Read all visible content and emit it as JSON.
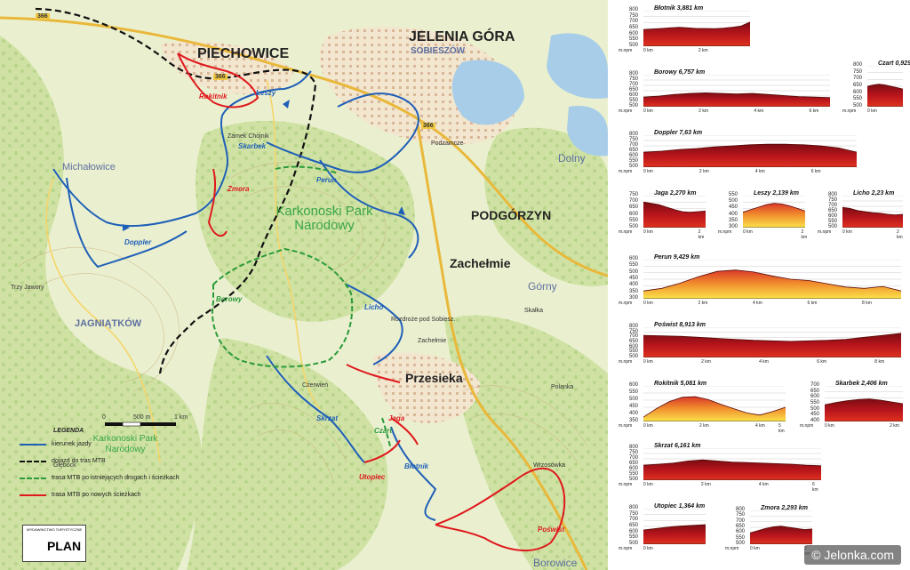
{
  "map": {
    "towns": [
      {
        "id": "piechowice",
        "name": "PIECHOWICE"
      },
      {
        "id": "jelenia",
        "name": "JELENIA GÓRA"
      },
      {
        "id": "sobieszow",
        "name": "SOBIESZÓW"
      },
      {
        "id": "podgorzyn",
        "name": "PODGÓRZYN"
      },
      {
        "id": "zachelmie",
        "name": "Zachełmie"
      },
      {
        "id": "przesieka",
        "name": "Przesieka"
      },
      {
        "id": "michalowice",
        "name": "Michałowice"
      },
      {
        "id": "jagniatkow",
        "name": "JAGNIĄTKÓW"
      },
      {
        "id": "dolny",
        "name": "Dolny"
      },
      {
        "id": "gorny",
        "name": "Górny"
      },
      {
        "id": "borowice",
        "name": "Borowice"
      }
    ],
    "park_label": "Karkonoski Park Narodowy",
    "legend_park_label": "Karkonoski Park Narodowy",
    "route_labels": [
      {
        "id": "rokitnik",
        "name": "Rokitnik",
        "color": "#e0191e"
      },
      {
        "id": "leszy",
        "name": "Leszy",
        "color": "#1f5fb8"
      },
      {
        "id": "skarbek",
        "name": "Skarbek",
        "color": "#1f5fb8"
      },
      {
        "id": "zmora",
        "name": "Zmora",
        "color": "#e0191e"
      },
      {
        "id": "doppler",
        "name": "Doppler",
        "color": "#1f5fb8"
      },
      {
        "id": "perun",
        "name": "Perun",
        "color": "#1f5fb8"
      },
      {
        "id": "borowy",
        "name": "Borowy",
        "color": "#2b9a3a"
      },
      {
        "id": "licho",
        "name": "Licho",
        "color": "#1f5fb8"
      },
      {
        "id": "skrzat",
        "name": "Skrzat",
        "color": "#1f5fb8"
      },
      {
        "id": "jaga",
        "name": "Jaga",
        "color": "#e0191e"
      },
      {
        "id": "czart",
        "name": "Czart",
        "color": "#2b9a3a"
      },
      {
        "id": "blotnik",
        "name": "Błotnik",
        "color": "#1f5fb8"
      },
      {
        "id": "utopiec",
        "name": "Utopiec",
        "color": "#e0191e"
      },
      {
        "id": "poswist",
        "name": "Poświst",
        "color": "#e0191e"
      }
    ],
    "place_names": [
      "Zamek Chojnik",
      "Podzamcze",
      "Zachełmie",
      "Trzy Jawory",
      "Skałka",
      "Polanka",
      "Czerwień",
      "Rozdroże pod Sobiesz.",
      "Głębock",
      "Wrzosówka"
    ],
    "scale": {
      "zero": "0",
      "mid": "500 m",
      "end": "1 km"
    },
    "road_numbers": [
      "366",
      "366",
      "366"
    ],
    "legend": {
      "title": "LEGENDA",
      "items": [
        {
          "label": "kierunek jazdy",
          "style": "arrow",
          "color": "#1f5fb8"
        },
        {
          "label": "dojazd do tras MTB",
          "style": "dash",
          "color": "#111111"
        },
        {
          "label": "trasa MTB po istniejących drogach i ścieżkach",
          "style": "greendash",
          "color": "#2b9a3a"
        },
        {
          "label": "trasa MTB po nowych ścieżkach",
          "style": "solid",
          "color": "#e0191e"
        }
      ]
    },
    "brand": {
      "top": "WYDAWNICTWO TURYSTYCZNE",
      "name": "PLAN"
    }
  },
  "profiles": [
    {
      "id": "blotnik",
      "title": "Błotnik 3,881 km",
      "yticks": [
        "800",
        "750",
        "700",
        "650",
        "600",
        "550",
        "500"
      ],
      "xticks": [
        "0 km",
        "2 km"
      ],
      "unit": "m.npm",
      "km": 3.881,
      "elev": [
        640,
        645,
        650,
        655,
        660,
        655,
        650,
        650,
        648,
        652,
        660,
        670,
        705
      ],
      "ymin": 500,
      "ymax": 800
    },
    {
      "id": "borowy",
      "title": "Borowy 6,757 km",
      "yticks": [
        "800",
        "750",
        "700",
        "650",
        "600",
        "550",
        "500"
      ],
      "xticks": [
        "0 km",
        "2 km",
        "4 km",
        "6 km"
      ],
      "unit": "m.npm",
      "km": 6.757,
      "elev": [
        590,
        600,
        615,
        625,
        630,
        625,
        620,
        625,
        615,
        605,
        595,
        590,
        585
      ],
      "ymin": 500,
      "ymax": 800
    },
    {
      "id": "czart",
      "title": "Czart 0,929 km",
      "yticks": [
        "800",
        "750",
        "700",
        "650",
        "600",
        "550",
        "500"
      ],
      "xticks": [
        "0 km"
      ],
      "unit": "m.npm",
      "km": 0.929,
      "elev": [
        650,
        660,
        665,
        660,
        650,
        640,
        630
      ],
      "ymin": 500,
      "ymax": 800
    },
    {
      "id": "doppler",
      "title": "Doppler 7,63 km",
      "yticks": [
        "800",
        "750",
        "700",
        "650",
        "600",
        "550",
        "500"
      ],
      "xticks": [
        "0 km",
        "2 km",
        "4 km",
        "6 km"
      ],
      "unit": "m.npm",
      "km": 7.63,
      "elev": [
        640,
        650,
        665,
        675,
        690,
        700,
        710,
        715,
        715,
        710,
        700,
        680,
        640
      ],
      "ymin": 500,
      "ymax": 800
    },
    {
      "id": "jaga",
      "title": "Jaga 2,270 km",
      "yticks": [
        "750",
        "700",
        "650",
        "600",
        "550",
        "500"
      ],
      "xticks": [
        "0 km",
        "2 km"
      ],
      "unit": "m.npm",
      "km": 2.27,
      "elev": [
        700,
        690,
        680,
        660,
        640,
        625,
        620,
        625,
        630
      ],
      "ymin": 500,
      "ymax": 750
    },
    {
      "id": "leszy",
      "title": "Leszy 2,139 km",
      "yticks": [
        "550",
        "500",
        "450",
        "400",
        "350",
        "300"
      ],
      "xticks": [
        "0 km",
        "2 km"
      ],
      "unit": "m.npm",
      "km": 2.139,
      "elev": [
        420,
        440,
        460,
        480,
        490,
        485,
        470,
        450,
        430
      ],
      "ymin": 300,
      "ymax": 550
    },
    {
      "id": "licho",
      "title": "Licho 2,23 km",
      "yticks": [
        "800",
        "750",
        "700",
        "650",
        "600",
        "550",
        "500"
      ],
      "xticks": [
        "0 km",
        "2 km"
      ],
      "unit": "m.npm",
      "km": 2.23,
      "elev": [
        690,
        680,
        660,
        650,
        640,
        635,
        625,
        620,
        625
      ],
      "ymin": 500,
      "ymax": 800
    },
    {
      "id": "perun",
      "title": "Perun 9,429 km",
      "yticks": [
        "600",
        "550",
        "500",
        "450",
        "400",
        "350",
        "300"
      ],
      "xticks": [
        "0 km",
        "2 km",
        "4 km",
        "6 km",
        "8 km"
      ],
      "unit": "m.npm",
      "km": 9.429,
      "elev": [
        360,
        380,
        420,
        470,
        510,
        520,
        505,
        475,
        450,
        440,
        415,
        390,
        380,
        395,
        360
      ],
      "ymin": 300,
      "ymax": 600
    },
    {
      "id": "poswist",
      "title": "Poświst 8,913 km",
      "yticks": [
        "800",
        "750",
        "700",
        "650",
        "600",
        "550",
        "500"
      ],
      "xticks": [
        "0 km",
        "2 km",
        "4 km",
        "6 km",
        "8 km"
      ],
      "unit": "m.npm",
      "km": 8.913,
      "elev": [
        720,
        715,
        710,
        700,
        690,
        680,
        670,
        665,
        660,
        665,
        670,
        680,
        700,
        720,
        740
      ],
      "ymin": 500,
      "ymax": 800
    },
    {
      "id": "rokitnik",
      "title": "Rokitnik 5,081 km",
      "yticks": [
        "600",
        "550",
        "500",
        "450",
        "400",
        "350"
      ],
      "xticks": [
        "0 km",
        "2 km",
        "4 km",
        "5 km"
      ],
      "unit": "m.npm",
      "km": 5.081,
      "elev": [
        380,
        440,
        490,
        520,
        525,
        505,
        470,
        440,
        410,
        395,
        420,
        450
      ],
      "ymin": 350,
      "ymax": 600
    },
    {
      "id": "skarbek",
      "title": "Skarbek 2,406 km",
      "yticks": [
        "700",
        "650",
        "600",
        "550",
        "500",
        "450",
        "400"
      ],
      "xticks": [
        "0 km",
        "2 km"
      ],
      "unit": "m.npm",
      "km": 2.406,
      "elev": [
        540,
        560,
        575,
        585,
        590,
        580,
        565,
        550
      ],
      "ymin": 400,
      "ymax": 700
    },
    {
      "id": "skrzat",
      "title": "Skrzat 6,161 km",
      "yticks": [
        "800",
        "750",
        "700",
        "650",
        "600",
        "550",
        "500"
      ],
      "xticks": [
        "0 km",
        "2 km",
        "4 km",
        "6 km"
      ],
      "unit": "m.npm",
      "km": 6.161,
      "elev": [
        640,
        650,
        660,
        680,
        690,
        680,
        670,
        665,
        660,
        655,
        650,
        640,
        635
      ],
      "ymin": 500,
      "ymax": 800
    },
    {
      "id": "utopiec",
      "title": "Utopiec 1,364 km",
      "yticks": [
        "800",
        "750",
        "700",
        "650",
        "600",
        "550",
        "500"
      ],
      "xticks": [
        "0 km"
      ],
      "unit": "m.npm",
      "km": 1.364,
      "elev": [
        620,
        630,
        640,
        650,
        655,
        660,
        665
      ],
      "ymin": 500,
      "ymax": 800
    },
    {
      "id": "zmora",
      "title": "Zmora 2,293 km",
      "yticks": [
        "800",
        "750",
        "700",
        "650",
        "600",
        "550",
        "500"
      ],
      "xticks": [
        "0 km",
        "2 km"
      ],
      "unit": "m.npm",
      "km": 2.293,
      "elev": [
        600,
        620,
        640,
        655,
        660,
        650,
        640,
        630,
        635
      ],
      "ymin": 500,
      "ymax": 800
    }
  ],
  "watermark": "© Jelonka.com"
}
